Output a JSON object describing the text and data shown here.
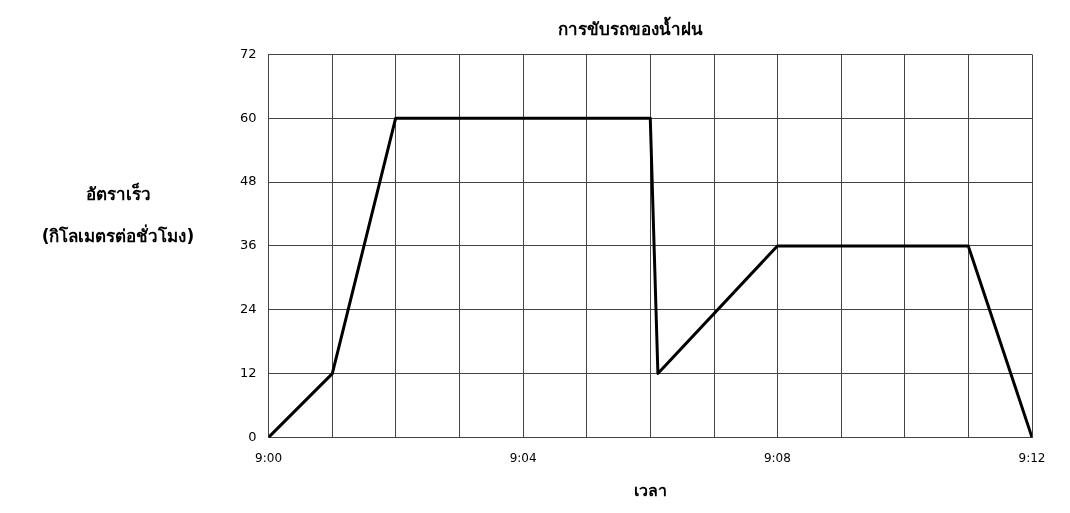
{
  "chart_data": {
    "type": "line",
    "title": "การขับรถของน้ำฝน",
    "xlabel": "เวลา",
    "ylabel": "อัตราเร็ว\n(กิโลเมตรต่อชั่วโมง)",
    "x": [
      9,
      9.0167,
      9.0333,
      9.1,
      9.102,
      9.1333,
      9.1833,
      9.2
    ],
    "series": [
      {
        "color": "#000000",
        "values": [
          0,
          12,
          60,
          60,
          12,
          36,
          36,
          0
        ]
      }
    ],
    "xlim": [
      9,
      9.2
    ],
    "xticks": [
      {
        "value": 9,
        "label": "9:00"
      },
      {
        "value": 9.0167,
        "label": null
      },
      {
        "value": 9.0333,
        "label": null
      },
      {
        "value": 9.05,
        "label": null
      },
      {
        "value": 9.0667,
        "label": "9:04"
      },
      {
        "value": 9.0833,
        "label": null
      },
      {
        "value": 9.1,
        "label": null
      },
      {
        "value": 9.1167,
        "label": null
      },
      {
        "value": 9.1333,
        "label": "9:08"
      },
      {
        "value": 9.15,
        "label": null
      },
      {
        "value": 9.1667,
        "label": null
      },
      {
        "value": 9.1833,
        "label": null
      },
      {
        "value": 9.2,
        "label": "9:12"
      }
    ],
    "ylim": [
      0,
      72
    ],
    "yticks": [
      0,
      12,
      24,
      36,
      48,
      60,
      72
    ],
    "grid": true,
    "legend": false,
    "marker": "none",
    "line_style": "solid"
  }
}
